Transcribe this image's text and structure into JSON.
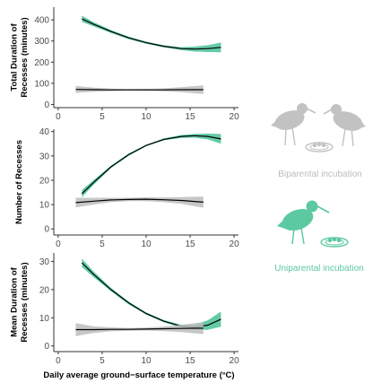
{
  "colors": {
    "biparental": "#c8c8c8",
    "biparental_band": "#bdbdbd",
    "uniparental": "#5cc9a0",
    "uniparental_band": "#5cc9a0",
    "fit_line": "#000000",
    "axis": "#333333"
  },
  "legend": {
    "biparental_label": "Biparental incubation",
    "uniparental_label": "Uniparental incubation",
    "biparental_icon": "two-birds-with-nest-icon",
    "uniparental_icon": "one-bird-with-nest-icon"
  },
  "xlabel": "Daily average ground−surface temperature (°C)",
  "chart_data": [
    {
      "type": "line",
      "ylabel_lines": [
        "Total Duration of",
        "Recesses (minutes)"
      ],
      "xlim": [
        -0.5,
        20.5
      ],
      "ylim": [
        -15,
        460
      ],
      "xticks": [
        0,
        5,
        10,
        15,
        20
      ],
      "yticks": [
        0,
        100,
        200,
        300,
        400
      ],
      "series": [
        {
          "group": "uniparental",
          "x": [
            2.7,
            4,
            6,
            8,
            10,
            12,
            14,
            15.5,
            17,
            18.5
          ],
          "y": [
            405,
            380,
            345,
            315,
            292,
            275,
            264,
            262,
            264,
            270
          ],
          "lower": [
            390,
            370,
            338,
            309,
            287,
            270,
            257,
            250,
            248,
            247
          ],
          "upper": [
            420,
            390,
            352,
            321,
            297,
            280,
            271,
            274,
            280,
            293
          ]
        },
        {
          "group": "biparental",
          "x": [
            2,
            4,
            6,
            8,
            10,
            12,
            14,
            16.5
          ],
          "y": [
            71,
            70,
            69,
            69,
            69,
            69,
            70,
            70
          ],
          "lower": [
            55,
            60,
            63,
            65,
            64,
            62,
            58,
            50
          ],
          "upper": [
            87,
            80,
            75,
            73,
            74,
            76,
            82,
            90
          ]
        }
      ]
    },
    {
      "type": "line",
      "ylabel_lines": [
        "Number of Recesses"
      ],
      "xlim": [
        -0.5,
        20.5
      ],
      "ylim": [
        -2.5,
        41
      ],
      "xticks": [
        0,
        5,
        10,
        15,
        20
      ],
      "yticks": [
        0,
        10,
        20,
        30,
        40
      ],
      "series": [
        {
          "group": "uniparental",
          "x": [
            2.7,
            4,
            6,
            8,
            10,
            12,
            14,
            15.5,
            17,
            18.5
          ],
          "y": [
            14.5,
            19,
            25.5,
            30.5,
            34.3,
            36.8,
            38,
            38.3,
            38,
            37
          ],
          "lower": [
            13,
            18,
            25,
            30,
            34,
            36.4,
            37.4,
            37.5,
            36.8,
            35
          ],
          "upper": [
            16,
            20,
            26,
            31,
            34.6,
            37.2,
            38.6,
            39.1,
            39.2,
            39
          ]
        },
        {
          "group": "biparental",
          "x": [
            2,
            4,
            6,
            8,
            10,
            12,
            14,
            16.5
          ],
          "y": [
            10.8,
            11.4,
            11.9,
            12.1,
            12.2,
            12,
            11.7,
            11
          ],
          "lower": [
            8.8,
            10,
            11,
            11.4,
            11.4,
            11,
            10.3,
            8.7
          ],
          "upper": [
            12.8,
            12.8,
            12.8,
            12.8,
            13,
            13,
            13.1,
            13.3
          ]
        }
      ]
    },
    {
      "type": "line",
      "ylabel_lines": [
        "Mean Duration of",
        "Recesses (minutes)"
      ],
      "xlim": [
        -0.5,
        20.5
      ],
      "ylim": [
        -2,
        33
      ],
      "xticks": [
        0,
        5,
        10,
        15,
        20
      ],
      "yticks": [
        0,
        10,
        20,
        30
      ],
      "series": [
        {
          "group": "uniparental",
          "x": [
            2.7,
            4,
            6,
            8,
            10,
            12,
            14,
            15.5,
            17,
            18.5
          ],
          "y": [
            29.5,
            25.5,
            20,
            15.3,
            11.5,
            8.8,
            7,
            6.7,
            7.4,
            9.5
          ],
          "lower": [
            28,
            24.5,
            19.4,
            14.8,
            11.1,
            8.4,
            6.5,
            5.8,
            5.7,
            6.8
          ],
          "upper": [
            31,
            26.5,
            20.6,
            15.8,
            11.9,
            9.2,
            7.5,
            7.6,
            9.1,
            12.2
          ]
        },
        {
          "group": "biparental",
          "x": [
            2,
            4,
            6,
            8,
            10,
            12,
            14,
            16.5
          ],
          "y": [
            5.8,
            5.8,
            5.9,
            5.9,
            6,
            6.1,
            6.2,
            6.3
          ],
          "lower": [
            3.5,
            4.6,
            5.2,
            5.4,
            5.5,
            5.3,
            4.9,
            4.2
          ],
          "upper": [
            8.1,
            7,
            6.6,
            6.4,
            6.5,
            6.9,
            7.5,
            8.4
          ]
        }
      ]
    }
  ]
}
